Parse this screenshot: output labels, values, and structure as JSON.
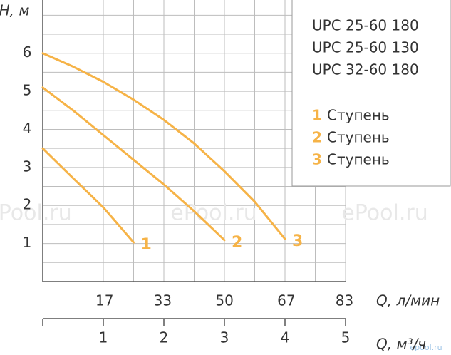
{
  "chart_data": {
    "type": "line",
    "y_label": "H, м",
    "x_label": "Q, м³/ч",
    "x2_label": "Q, л/мин",
    "xlim": [
      0,
      5
    ],
    "xticks": [
      1,
      2,
      3,
      4,
      5
    ],
    "x2lim": [
      0,
      83.3
    ],
    "x2ticks": [
      17,
      33,
      50,
      67,
      83
    ],
    "ylim": [
      0,
      7.4
    ],
    "yticks": [
      1,
      2,
      3,
      4,
      5,
      6
    ],
    "xgrid": [
      0.5,
      1,
      1.5,
      2,
      2.5,
      3,
      3.5,
      4,
      4.5,
      5
    ],
    "ygrid": [
      0.5,
      1,
      1.5,
      2,
      2.5,
      3,
      3.5,
      4,
      4.5,
      5,
      5.5,
      6,
      6.5,
      7
    ],
    "grid": true,
    "legend_position": "upper right",
    "models": [
      "UPC 25-60 180",
      "UPC 25-60 130",
      "UPC 32-60 180"
    ],
    "series": [
      {
        "name": "1",
        "legend_label": "Ступень",
        "color": "#f6b347",
        "x": [
          0,
          0.5,
          1,
          1.5
        ],
        "values": [
          3.5,
          2.72,
          1.95,
          1.03
        ]
      },
      {
        "name": "2",
        "legend_label": "Ступень",
        "color": "#f6b347",
        "x": [
          0,
          0.5,
          1,
          1.5,
          2,
          2.5,
          3
        ],
        "values": [
          5.1,
          4.5,
          3.85,
          3.2,
          2.55,
          1.85,
          1.09
        ]
      },
      {
        "name": "3",
        "legend_label": "Ступень",
        "color": "#f6b347",
        "x": [
          0,
          0.5,
          1,
          1.5,
          2,
          2.5,
          3,
          3.5,
          4
        ],
        "values": [
          6,
          5.65,
          5.25,
          4.78,
          4.25,
          3.63,
          2.9,
          2.1,
          1.12
        ]
      }
    ],
    "watermarks": [
      "ePool.ru",
      "ePool.ru",
      "ePool.ru",
      "epool.ru"
    ]
  }
}
